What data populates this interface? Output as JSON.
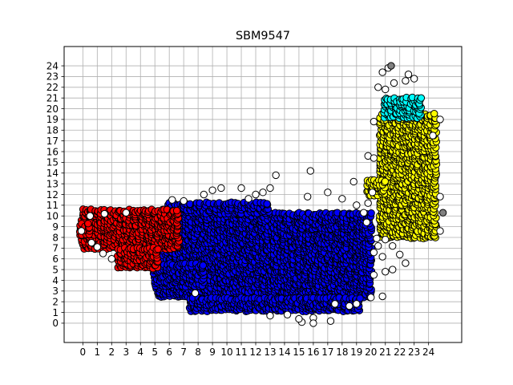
{
  "chart_data": {
    "type": "scatter",
    "title": "SBM9547",
    "xlabel": "",
    "ylabel": "",
    "xlim": [
      -1.3,
      26.3
    ],
    "ylim": [
      -1.8,
      25.8
    ],
    "xticks": [
      0,
      1,
      2,
      3,
      4,
      5,
      6,
      7,
      8,
      9,
      10,
      11,
      12,
      13,
      14,
      15,
      16,
      17,
      18,
      19,
      20,
      21,
      22,
      23,
      24
    ],
    "yticks": [
      0,
      1,
      2,
      3,
      4,
      5,
      6,
      7,
      8,
      9,
      10,
      11,
      12,
      13,
      14,
      15,
      16,
      17,
      18,
      19,
      20,
      21,
      22,
      23,
      24
    ],
    "grid": true,
    "colors": {
      "blue_cluster": "#0000ff",
      "red_cluster": "#ff0000",
      "yellow_cluster": "#ffff00",
      "cyan_cluster": "#00ffff",
      "unassigned": "#ffffff",
      "outlier_gray": "#808080",
      "marker_edge": "#000000"
    },
    "series": [
      {
        "color": "#0000ff",
        "regions": [
          {
            "x": [
              5.2,
              20.0
            ],
            "y": [
              2.5,
              10.3
            ]
          },
          {
            "x": [
              7.5,
              19.2
            ],
            "y": [
              1.2,
              2.5
            ]
          },
          {
            "x": [
              6.0,
              13.0
            ],
            "y": [
              10.3,
              11.2
            ]
          },
          {
            "x": [
              5.0,
              8.5
            ],
            "y": [
              3.5,
              5.5
            ]
          }
        ]
      },
      {
        "color": "#ff0000",
        "regions": [
          {
            "x": [
              0.0,
              6.8
            ],
            "y": [
              7.0,
              10.7
            ]
          },
          {
            "x": [
              2.5,
              5.3
            ],
            "y": [
              5.2,
              7.0
            ]
          },
          {
            "x": [
              -0.2,
              0.6
            ],
            "y": [
              8.3,
              9.3
            ]
          }
        ]
      },
      {
        "color": "#ffff00",
        "regions": [
          {
            "x": [
              20.7,
              24.6
            ],
            "y": [
              8.0,
              19.5
            ]
          },
          {
            "x": [
              19.8,
              21.0
            ],
            "y": [
              12.0,
              13.5
            ]
          }
        ]
      },
      {
        "color": "#00ffff",
        "regions": [
          {
            "x": [
              21.0,
              23.6
            ],
            "y": [
              19.2,
              21.0
            ]
          }
        ]
      },
      {
        "color": "#ffffff",
        "points": [
          [
            20.8,
            23.4
          ],
          [
            21.2,
            23.8
          ],
          [
            21.0,
            21.8
          ],
          [
            21.6,
            22.4
          ],
          [
            22.4,
            22.6
          ],
          [
            23.0,
            22.8
          ],
          [
            22.6,
            23.2
          ],
          [
            20.2,
            18.8
          ],
          [
            20.5,
            22.0
          ],
          [
            24.8,
            19.0
          ],
          [
            24.3,
            17.5
          ],
          [
            19.8,
            15.6
          ],
          [
            20.2,
            15.4
          ],
          [
            18.8,
            13.2
          ],
          [
            20.1,
            12.2
          ],
          [
            19.8,
            11.2
          ],
          [
            24.8,
            11.8
          ],
          [
            24.8,
            8.6
          ],
          [
            22.0,
            6.4
          ],
          [
            22.4,
            5.6
          ],
          [
            21.5,
            5.0
          ],
          [
            21.0,
            4.8
          ],
          [
            20.2,
            4.5
          ],
          [
            20.5,
            7.2
          ],
          [
            21.0,
            7.8
          ],
          [
            20.8,
            6.2
          ],
          [
            20.0,
            2.4
          ],
          [
            20.8,
            2.5
          ],
          [
            16.0,
            0.5
          ],
          [
            17.2,
            0.2
          ],
          [
            15.2,
            0.1
          ],
          [
            14.2,
            0.8
          ],
          [
            13.0,
            0.7
          ],
          [
            15.8,
            14.2
          ],
          [
            13.4,
            13.8
          ],
          [
            13.0,
            12.6
          ],
          [
            12.5,
            12.2
          ],
          [
            11.0,
            12.6
          ],
          [
            9.6,
            12.6
          ],
          [
            9.0,
            12.4
          ],
          [
            8.4,
            12.0
          ],
          [
            7.0,
            11.4
          ],
          [
            6.2,
            11.5
          ],
          [
            12.0,
            12.0
          ],
          [
            11.5,
            11.6
          ],
          [
            15.6,
            11.8
          ],
          [
            17.0,
            12.2
          ],
          [
            18.0,
            11.6
          ],
          [
            19.0,
            11.0
          ],
          [
            19.5,
            10.3
          ],
          [
            1.0,
            7.1
          ],
          [
            2.0,
            6.0
          ],
          [
            1.4,
            6.5
          ],
          [
            0.6,
            7.5
          ],
          [
            -0.1,
            8.6
          ],
          [
            7.8,
            2.8
          ],
          [
            18.5,
            1.6
          ],
          [
            19.0,
            1.8
          ],
          [
            17.5,
            1.8
          ],
          [
            19.7,
            9.4
          ],
          [
            20.2,
            6.6
          ],
          [
            20.4,
            7.9
          ],
          [
            21.5,
            7.2
          ],
          [
            0.5,
            10.0
          ],
          [
            1.5,
            10.2
          ],
          [
            3.0,
            10.3
          ],
          [
            16.0,
            0.0
          ],
          [
            15.0,
            0.4
          ]
        ]
      },
      {
        "color": "#808080",
        "points": [
          [
            21.4,
            24.0
          ],
          [
            25.0,
            10.3
          ]
        ]
      }
    ]
  }
}
